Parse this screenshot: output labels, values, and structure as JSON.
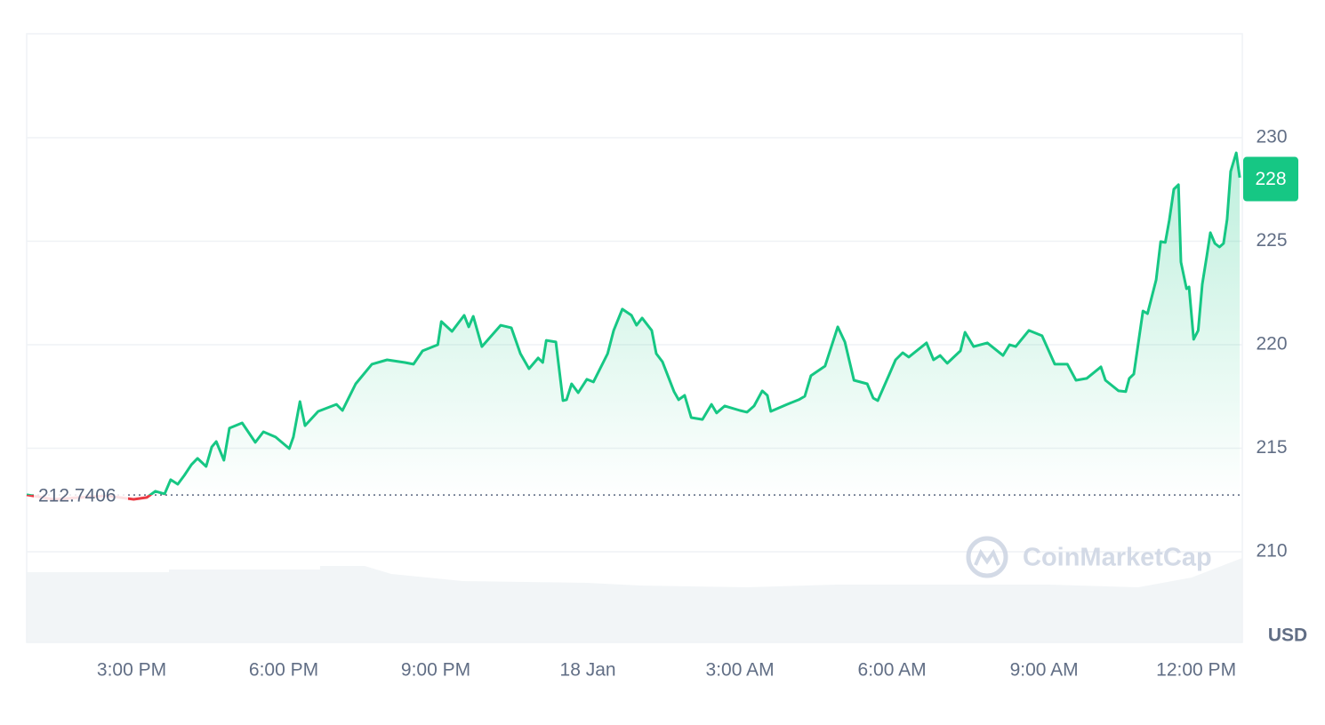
{
  "chart_data": {
    "type": "line",
    "x": [
      12.93,
      13.46,
      13.98,
      14.51,
      15.04,
      15.3,
      15.47,
      15.65,
      15.77,
      15.91,
      16.04,
      16.18,
      16.3,
      16.47,
      16.58,
      16.67,
      16.82,
      16.93,
      17.18,
      17.44,
      17.6,
      17.84,
      18.11,
      18.19,
      18.32,
      18.42,
      18.68,
      19.04,
      19.16,
      19.28,
      19.42,
      19.74,
      20.04,
      20.39,
      20.56,
      20.74,
      21.04,
      21.11,
      21.32,
      21.56,
      21.65,
      21.74,
      21.91,
      22.28,
      22.49,
      22.67,
      22.84,
      23.02,
      23.11,
      23.18,
      23.37,
      23.51,
      23.58,
      23.68,
      23.81,
      23.98,
      24.11,
      24.39,
      24.51,
      24.68,
      24.86,
      24.96,
      25.07,
      25.26,
      25.35,
      25.47,
      25.7,
      25.79,
      25.91,
      26.04,
      26.26,
      26.44,
      26.54,
      26.7,
      27.0,
      27.14,
      27.28,
      27.44,
      27.54,
      27.61,
      27.93,
      28.16,
      28.28,
      28.4,
      28.68,
      28.77,
      28.93,
      29.07,
      29.25,
      29.51,
      29.63,
      29.72,
      29.95,
      30.07,
      30.21,
      30.33,
      30.68,
      30.82,
      30.95,
      31.09,
      31.35,
      31.44,
      31.61,
      31.88,
      32.19,
      32.32,
      32.44,
      32.7,
      32.96,
      33.21,
      33.46,
      33.63,
      33.84,
      34.12,
      34.21,
      34.47,
      34.61,
      34.68,
      34.77,
      34.95,
      35.04,
      35.21,
      35.3,
      35.39,
      35.47,
      35.56,
      35.65,
      35.7,
      35.81,
      35.86,
      35.95,
      36.04,
      36.12,
      36.21,
      36.28,
      36.37,
      36.46,
      36.54,
      36.61,
      36.68,
      36.79,
      36.86
    ],
    "values": [
      212.75,
      212.53,
      212.62,
      212.7,
      212.53,
      212.62,
      212.92,
      212.79,
      213.48,
      213.26,
      213.69,
      214.21,
      214.51,
      214.12,
      215.06,
      215.32,
      214.42,
      215.97,
      216.22,
      215.28,
      215.79,
      215.54,
      214.98,
      215.54,
      217.25,
      216.09,
      216.78,
      217.12,
      216.82,
      217.42,
      218.11,
      219.06,
      219.27,
      219.14,
      219.06,
      219.7,
      220.0,
      221.12,
      220.64,
      221.42,
      220.86,
      221.37,
      219.91,
      220.94,
      220.82,
      219.57,
      218.84,
      219.36,
      219.14,
      220.21,
      220.13,
      217.3,
      217.34,
      218.11,
      217.68,
      218.33,
      218.2,
      219.57,
      220.69,
      221.72,
      221.42,
      220.94,
      221.29,
      220.69,
      219.57,
      219.18,
      217.73,
      217.34,
      217.55,
      216.48,
      216.39,
      217.12,
      216.7,
      217.04,
      216.82,
      216.74,
      217.04,
      217.77,
      217.55,
      216.78,
      217.12,
      217.34,
      217.51,
      218.5,
      218.97,
      219.66,
      220.86,
      220.13,
      218.28,
      218.11,
      217.42,
      217.3,
      218.58,
      219.27,
      219.61,
      219.4,
      220.09,
      219.27,
      219.48,
      219.1,
      219.7,
      220.6,
      219.91,
      220.09,
      219.48,
      220.0,
      219.91,
      220.69,
      220.43,
      219.06,
      219.06,
      218.28,
      218.37,
      218.93,
      218.28,
      217.77,
      217.73,
      218.37,
      218.58,
      221.63,
      221.5,
      223.13,
      224.98,
      224.94,
      226.01,
      227.51,
      227.73,
      223.99,
      222.7,
      222.79,
      220.26,
      220.69,
      222.92,
      224.29,
      225.41,
      224.89,
      224.72,
      224.89,
      226.05,
      228.37,
      229.27,
      228.07
    ],
    "color": "#16c784",
    "down_color": "#ea3943",
    "baseline": 212.7406,
    "current_price": 228,
    "xlim": [
      12.93,
      36.91
    ],
    "xticks": [
      {
        "value": 15,
        "label": "3:00 PM"
      },
      {
        "value": 18,
        "label": "6:00 PM"
      },
      {
        "value": 21,
        "label": "9:00 PM"
      },
      {
        "value": 24,
        "label": "18 Jan"
      },
      {
        "value": 27,
        "label": "3:00 AM"
      },
      {
        "value": 30,
        "label": "6:00 AM"
      },
      {
        "value": 33,
        "label": "9:00 AM"
      },
      {
        "value": 36,
        "label": "12:00 PM"
      }
    ],
    "ylim": [
      205.62,
      235.02
    ],
    "yticks": [
      210,
      215,
      220,
      225,
      230
    ],
    "grid": true,
    "y_unit": "USD",
    "watermark": "CoinMarketCap"
  }
}
